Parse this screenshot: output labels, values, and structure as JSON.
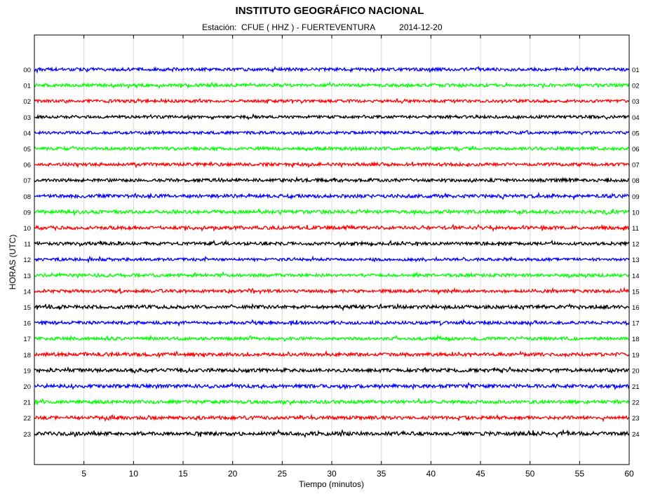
{
  "header": {
    "title": "INSTITUTO GEOGRÁFICO NACIONAL",
    "station_label": "Estación:",
    "station": "CFUE ( HHZ ) - FUERTEVENTURA",
    "date": "2014-12-20"
  },
  "chart_data": {
    "type": "line",
    "title": "INSTITUTO GEOGRÁFICO NACIONAL",
    "subtitle": "Estación:  CFUE ( HHZ ) - FUERTEVENTURA          2014-12-20",
    "xlabel": "Tiempo (minutos)",
    "ylabel": "HORAS (UTC)",
    "xlim": [
      0,
      60
    ],
    "x_ticks": [
      5,
      10,
      15,
      20,
      25,
      30,
      35,
      40,
      45,
      50,
      55,
      60
    ],
    "x_tick_labels": [
      "5",
      "10",
      "15",
      "20",
      "25",
      "30",
      "35",
      "40",
      "45",
      "50",
      "55",
      "60"
    ],
    "vertical_grid": true,
    "left_hour_labels": [
      "00",
      "01",
      "02",
      "03",
      "04",
      "05",
      "06",
      "07",
      "08",
      "09",
      "10",
      "11",
      "12",
      "13",
      "14",
      "15",
      "16",
      "17",
      "18",
      "19",
      "20",
      "21",
      "22",
      "23"
    ],
    "right_hour_labels": [
      "01",
      "02",
      "03",
      "04",
      "05",
      "06",
      "07",
      "08",
      "09",
      "10",
      "11",
      "12",
      "13",
      "14",
      "15",
      "16",
      "17",
      "18",
      "19",
      "20",
      "21",
      "22",
      "23",
      "24"
    ],
    "trace_colors": [
      "#0000ff",
      "#00ff00",
      "#ff0000",
      "#000000"
    ],
    "series": [
      {
        "hour": "00",
        "color": "#0000ff",
        "amplitude": 2.2
      },
      {
        "hour": "01",
        "color": "#00ff00",
        "amplitude": 2.2
      },
      {
        "hour": "02",
        "color": "#ff0000",
        "amplitude": 2.0
      },
      {
        "hour": "03",
        "color": "#000000",
        "amplitude": 2.0
      },
      {
        "hour": "04",
        "color": "#0000ff",
        "amplitude": 2.0
      },
      {
        "hour": "05",
        "color": "#00ff00",
        "amplitude": 2.2
      },
      {
        "hour": "06",
        "color": "#ff0000",
        "amplitude": 2.2
      },
      {
        "hour": "07",
        "color": "#000000",
        "amplitude": 2.2
      },
      {
        "hour": "08",
        "color": "#0000ff",
        "amplitude": 2.4
      },
      {
        "hour": "09",
        "color": "#00ff00",
        "amplitude": 2.4
      },
      {
        "hour": "10",
        "color": "#ff0000",
        "amplitude": 2.4
      },
      {
        "hour": "11",
        "color": "#000000",
        "amplitude": 2.2
      },
      {
        "hour": "12",
        "color": "#0000ff",
        "amplitude": 2.0
      },
      {
        "hour": "13",
        "color": "#00ff00",
        "amplitude": 2.2
      },
      {
        "hour": "14",
        "color": "#ff0000",
        "amplitude": 2.2
      },
      {
        "hour": "15",
        "color": "#000000",
        "amplitude": 2.4
      },
      {
        "hour": "16",
        "color": "#0000ff",
        "amplitude": 2.2
      },
      {
        "hour": "17",
        "color": "#00ff00",
        "amplitude": 2.2
      },
      {
        "hour": "18",
        "color": "#ff0000",
        "amplitude": 2.4
      },
      {
        "hour": "19",
        "color": "#000000",
        "amplitude": 2.4
      },
      {
        "hour": "20",
        "color": "#0000ff",
        "amplitude": 2.4
      },
      {
        "hour": "21",
        "color": "#00ff00",
        "amplitude": 2.4
      },
      {
        "hour": "22",
        "color": "#ff0000",
        "amplitude": 2.4
      },
      {
        "hour": "23",
        "color": "#000000",
        "amplitude": 2.6
      }
    ]
  }
}
